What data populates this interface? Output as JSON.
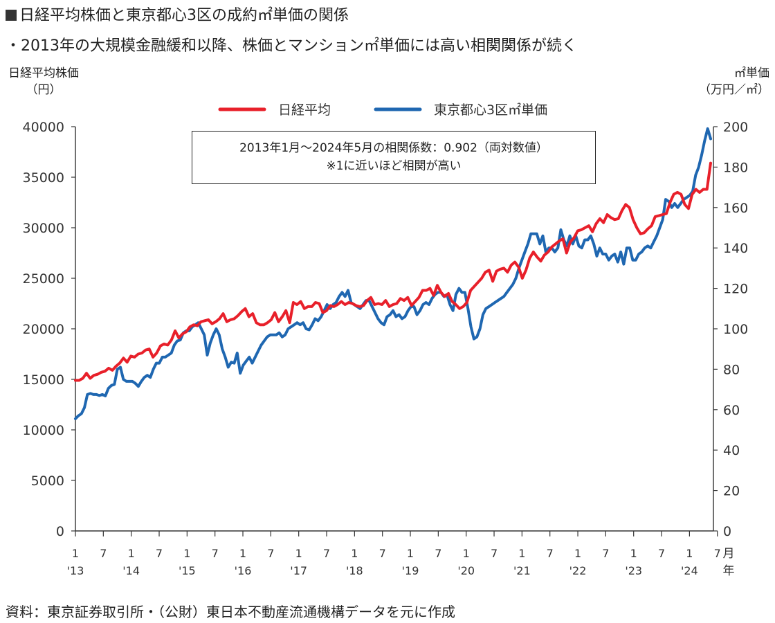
{
  "title": "日経平均株価と東京都心3区の成約㎡単価の関係",
  "subtitle": "・2013年の大規模金融緩和以降、株価とマンション㎡単価には高い相関関係が続く",
  "source": "資料：東京証券取引所・（公財）東日本不動産流通機構データを元に作成",
  "annotation": {
    "line1": "2013年1月～2024年5月の相関係数：0.902（両対数値）",
    "line2": "※1に近いほど相関が高い"
  },
  "chart_data": {
    "type": "line",
    "y_left_label": [
      "日経平均株価",
      "（円）"
    ],
    "y_right_label": [
      "㎡単価",
      "（万円／㎡）"
    ],
    "ylim_left": [
      0,
      40000
    ],
    "ylim_right": [
      0,
      200
    ],
    "y_left_ticks": [
      "0",
      "5000",
      "10000",
      "15000",
      "20000",
      "25000",
      "30000",
      "35000",
      "40000"
    ],
    "y_right_ticks": [
      "0",
      "20",
      "40",
      "60",
      "80",
      "100",
      "120",
      "140",
      "160",
      "180",
      "200"
    ],
    "x_month_ticks": [
      "1",
      "7",
      "1",
      "7",
      "1",
      "7",
      "1",
      "7",
      "1",
      "7",
      "1",
      "7",
      "1",
      "7",
      "1",
      "7",
      "1",
      "7",
      "1",
      "7",
      "1",
      "7",
      "1",
      "7"
    ],
    "x_year_labels": [
      "'13",
      "'14",
      "'15",
      "'16",
      "'17",
      "'18",
      "'19",
      "'20",
      "'21",
      "'22",
      "'23",
      "'24"
    ],
    "x_axis_unit": [
      "月",
      "年"
    ],
    "legend": [
      {
        "name": "日経平均",
        "color": "#e8202a"
      },
      {
        "name": "東京都心3区㎡単価",
        "color": "#1f67b1"
      }
    ],
    "series": [
      {
        "name": "日経平均",
        "axis": "left",
        "color": "#e8202a",
        "anchors": [
          [
            0,
            14900
          ],
          [
            2,
            15300
          ],
          [
            4,
            15900
          ],
          [
            6,
            15700
          ],
          [
            8,
            16100
          ],
          [
            10,
            16500
          ],
          [
            12,
            16700
          ],
          [
            14,
            17100
          ],
          [
            16,
            17200
          ],
          [
            18,
            17000
          ],
          [
            20,
            17600
          ],
          [
            22,
            17800
          ],
          [
            24,
            18000
          ],
          [
            26,
            18600
          ],
          [
            28,
            19300
          ],
          [
            30,
            19600
          ],
          [
            32,
            19800
          ],
          [
            34,
            20000
          ],
          [
            36,
            19900
          ],
          [
            38,
            20300
          ],
          [
            40,
            20600
          ],
          [
            42,
            20100
          ],
          [
            44,
            20400
          ],
          [
            46,
            20300
          ],
          [
            48,
            20800
          ],
          [
            50,
            20500
          ],
          [
            52,
            20300
          ],
          [
            54,
            20200
          ],
          [
            56,
            21000
          ],
          [
            58,
            21300
          ],
          [
            60,
            21800
          ],
          [
            62,
            22000
          ],
          [
            64,
            22300
          ],
          [
            66,
            22500
          ],
          [
            68,
            22400
          ],
          [
            70,
            22500
          ],
          [
            72,
            22600
          ],
          [
            74,
            22700
          ],
          [
            76,
            23000
          ],
          [
            78,
            23200
          ],
          [
            80,
            23400
          ],
          [
            82,
            23500
          ],
          [
            84,
            23400
          ],
          [
            86,
            22300
          ],
          [
            88,
            22400
          ],
          [
            90,
            23400
          ],
          [
            92,
            24500
          ],
          [
            94,
            25600
          ],
          [
            96,
            26000
          ],
          [
            98,
            26800
          ],
          [
            100,
            27300
          ],
          [
            102,
            27800
          ],
          [
            104,
            28100
          ],
          [
            106,
            28200
          ],
          [
            108,
            28400
          ],
          [
            110,
            28700
          ],
          [
            112,
            29100
          ],
          [
            114,
            29500
          ],
          [
            116,
            29700
          ],
          [
            118,
            30000
          ],
          [
            120,
            30300
          ],
          [
            122,
            30700
          ],
          [
            124,
            31000
          ],
          [
            126,
            31300
          ],
          [
            128,
            31600
          ],
          [
            130,
            32300
          ],
          [
            132,
            32700
          ],
          [
            134,
            33100
          ],
          [
            136,
            33500
          ],
          [
            138,
            34100
          ],
          [
            140,
            35200
          ],
          [
            136,
            33500
          ]
        ],
        "values": [
          14900,
          14900,
          15100,
          15600,
          15100,
          15400,
          15500,
          15700,
          15800,
          16100,
          15900,
          16300,
          16600,
          17100,
          16700,
          17300,
          17200,
          17500,
          17600,
          17900,
          18000,
          17200,
          17600,
          18300,
          18500,
          18400,
          18900,
          19800,
          19100,
          19500,
          19700,
          20200,
          20400,
          20300,
          20700,
          20800,
          20900,
          20500,
          20700,
          21000,
          21500,
          20700,
          20900,
          21000,
          21300,
          21700,
          22000,
          21200,
          21500,
          20600,
          20400,
          20400,
          20600,
          20900,
          21600,
          20700,
          21200,
          21800,
          20600,
          22600,
          22400,
          22700,
          22000,
          22200,
          22200,
          22600,
          22500,
          21600,
          21800,
          22300,
          22200,
          22400,
          22700,
          22400,
          22600,
          22500,
          22300,
          22200,
          22300,
          22800,
          23100,
          22400,
          22500,
          22400,
          22800,
          22200,
          22400,
          22500,
          23000,
          22800,
          23100,
          22300,
          22700,
          23100,
          23800,
          23800,
          24000,
          23300,
          24300,
          23600,
          23200,
          23500,
          22700,
          22400,
          22000,
          22200,
          22600,
          23800,
          24200,
          24600,
          25000,
          25600,
          25800,
          24700,
          25700,
          25900,
          26000,
          25600,
          26300,
          26600,
          26100,
          25000,
          25800,
          27000,
          27600,
          27100,
          26700,
          27300,
          27600,
          28100,
          28400,
          28700,
          28900,
          27500,
          28600,
          29000,
          29700,
          29800,
          30000,
          30200,
          29600,
          30400,
          30900,
          30500,
          31300,
          31000,
          30800,
          30900,
          31700,
          32300,
          32000,
          30800,
          30000,
          29400,
          29500,
          29900,
          30200,
          31100,
          31200,
          31300,
          31400,
          32500,
          33300,
          33500,
          33300,
          32300,
          31900,
          33300,
          33800,
          33500,
          33800,
          33800,
          36400
        ],
        "count_note": "monthly"
      },
      {
        "name": "東京都心3区㎡単価",
        "axis": "right",
        "color": "#1f67b1",
        "values": [
          55.5,
          57,
          58,
          61,
          67.5,
          68,
          67.5,
          67.5,
          67,
          67.5,
          66.8,
          70.5,
          72,
          72.5,
          80,
          81,
          75,
          74,
          74,
          74,
          73,
          71.5,
          74,
          76,
          77,
          76,
          80,
          83,
          83,
          86,
          86,
          87,
          88,
          92,
          94,
          94.5,
          98,
          99,
          99,
          101,
          102,
          103,
          100,
          97,
          87,
          93,
          97,
          100,
          97,
          90,
          86,
          81,
          83.5,
          83,
          88,
          78,
          82,
          84,
          86,
          83,
          86,
          89,
          92,
          94,
          96,
          97,
          97,
          97,
          98,
          96,
          97,
          100,
          101,
          102,
          103,
          102,
          103,
          100,
          99.5,
          102,
          105,
          104,
          106,
          109,
          112,
          110,
          112,
          113,
          116,
          118,
          116,
          119,
          113,
          112,
          111,
          110,
          112,
          114,
          114,
          111,
          108,
          105,
          103,
          102,
          106,
          107,
          109,
          106,
          107,
          105,
          106,
          109,
          111,
          111,
          107,
          109,
          112,
          113,
          112,
          115,
          117,
          118,
          118,
          116,
          117,
          112,
          109,
          117,
          120,
          118,
          118,
          110,
          101,
          95,
          96,
          100,
          107,
          110,
          111,
          112,
          113,
          114,
          115,
          116,
          118,
          120,
          122,
          125,
          130,
          134,
          138,
          142,
          147,
          147,
          147,
          142,
          146,
          138,
          140,
          140,
          138,
          140,
          149,
          144,
          141,
          146,
          142,
          146,
          141,
          140,
          144,
          144,
          146,
          142,
          136,
          140,
          137,
          137,
          134,
          136,
          137,
          133,
          138,
          132,
          140,
          140,
          134,
          134,
          137,
          138,
          140,
          141,
          140,
          143,
          146,
          150,
          154,
          164,
          163,
          160,
          162,
          160,
          162,
          164,
          165,
          166,
          168,
          176,
          180,
          186,
          193,
          199,
          194
        ]
      }
    ],
    "grid": false,
    "legend_position": "top-center"
  }
}
